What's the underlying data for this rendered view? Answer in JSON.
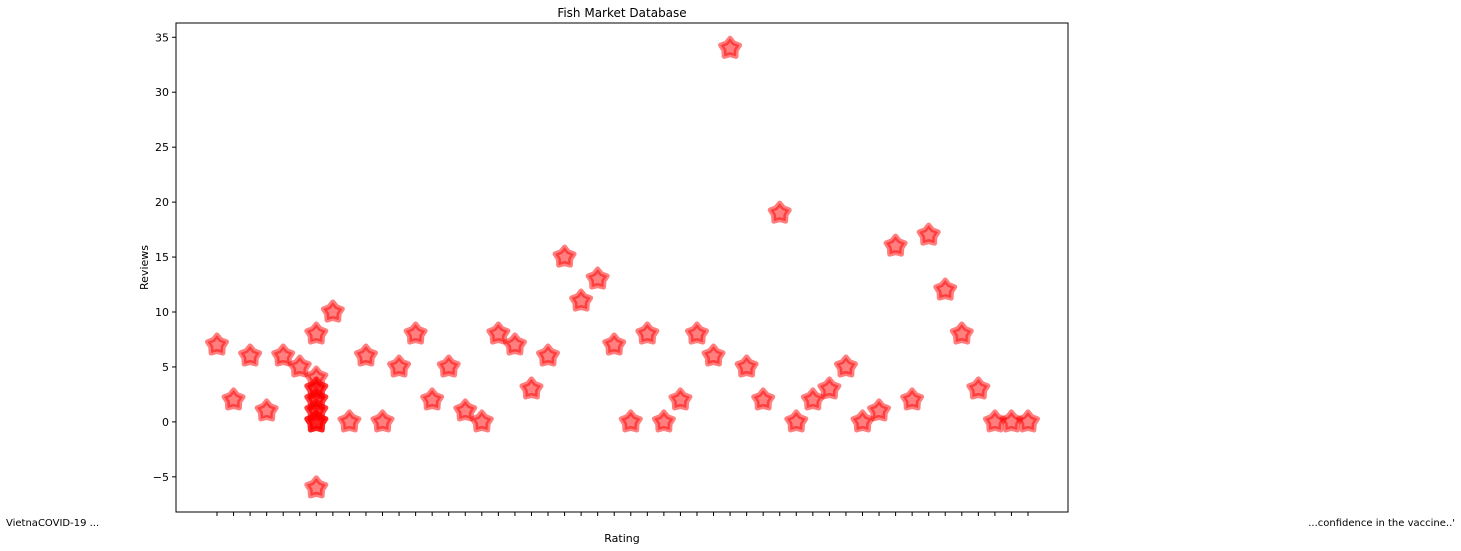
{
  "chart_data": {
    "type": "scatter",
    "title": "Fish Market Database",
    "xlabel": "Rating",
    "ylabel": "Reviews",
    "ylim": [
      -8.2,
      36.3
    ],
    "y_ticks": [
      -5,
      0,
      5,
      10,
      15,
      20,
      25,
      30,
      35
    ],
    "x_tick_labels_edge": {
      "left": "VietnaCOVID-19 ...",
      "right": "...confidence in the vaccine..'"
    },
    "marker": "star",
    "marker_color": "#ff0000",
    "marker_alpha": 0.5,
    "grid": false,
    "points": [
      {
        "x": 0,
        "y": 7
      },
      {
        "x": 1,
        "y": 2
      },
      {
        "x": 2,
        "y": 6
      },
      {
        "x": 3,
        "y": 1
      },
      {
        "x": 4,
        "y": 6
      },
      {
        "x": 5,
        "y": 5
      },
      {
        "x": 6,
        "y": 8
      },
      {
        "x": 6,
        "y": 4
      },
      {
        "x": 6,
        "y": 3
      },
      {
        "x": 6,
        "y": 3
      },
      {
        "x": 6,
        "y": 2
      },
      {
        "x": 6,
        "y": 2
      },
      {
        "x": 6,
        "y": 1
      },
      {
        "x": 6,
        "y": 1
      },
      {
        "x": 6,
        "y": 0
      },
      {
        "x": 6,
        "y": 0
      },
      {
        "x": 6,
        "y": 0
      },
      {
        "x": 6,
        "y": -6
      },
      {
        "x": 7,
        "y": 10
      },
      {
        "x": 8,
        "y": 0
      },
      {
        "x": 9,
        "y": 6
      },
      {
        "x": 10,
        "y": 0
      },
      {
        "x": 11,
        "y": 5
      },
      {
        "x": 12,
        "y": 8
      },
      {
        "x": 13,
        "y": 2
      },
      {
        "x": 14,
        "y": 5
      },
      {
        "x": 15,
        "y": 1
      },
      {
        "x": 16,
        "y": 0
      },
      {
        "x": 17,
        "y": 8
      },
      {
        "x": 18,
        "y": 7
      },
      {
        "x": 19,
        "y": 3
      },
      {
        "x": 20,
        "y": 6
      },
      {
        "x": 21,
        "y": 15
      },
      {
        "x": 22,
        "y": 11
      },
      {
        "x": 23,
        "y": 13
      },
      {
        "x": 24,
        "y": 7
      },
      {
        "x": 25,
        "y": 0
      },
      {
        "x": 26,
        "y": 8
      },
      {
        "x": 27,
        "y": 0
      },
      {
        "x": 28,
        "y": 2
      },
      {
        "x": 29,
        "y": 8
      },
      {
        "x": 30,
        "y": 6
      },
      {
        "x": 31,
        "y": 34
      },
      {
        "x": 32,
        "y": 5
      },
      {
        "x": 33,
        "y": 2
      },
      {
        "x": 34,
        "y": 19
      },
      {
        "x": 35,
        "y": 0
      },
      {
        "x": 36,
        "y": 2
      },
      {
        "x": 37,
        "y": 3
      },
      {
        "x": 38,
        "y": 5
      },
      {
        "x": 39,
        "y": 0
      },
      {
        "x": 40,
        "y": 1
      },
      {
        "x": 41,
        "y": 16
      },
      {
        "x": 42,
        "y": 2
      },
      {
        "x": 43,
        "y": 17
      },
      {
        "x": 44,
        "y": 12
      },
      {
        "x": 45,
        "y": 8
      },
      {
        "x": 46,
        "y": 3
      },
      {
        "x": 47,
        "y": 0
      },
      {
        "x": 48,
        "y": 0
      },
      {
        "x": 49,
        "y": 0
      }
    ]
  }
}
